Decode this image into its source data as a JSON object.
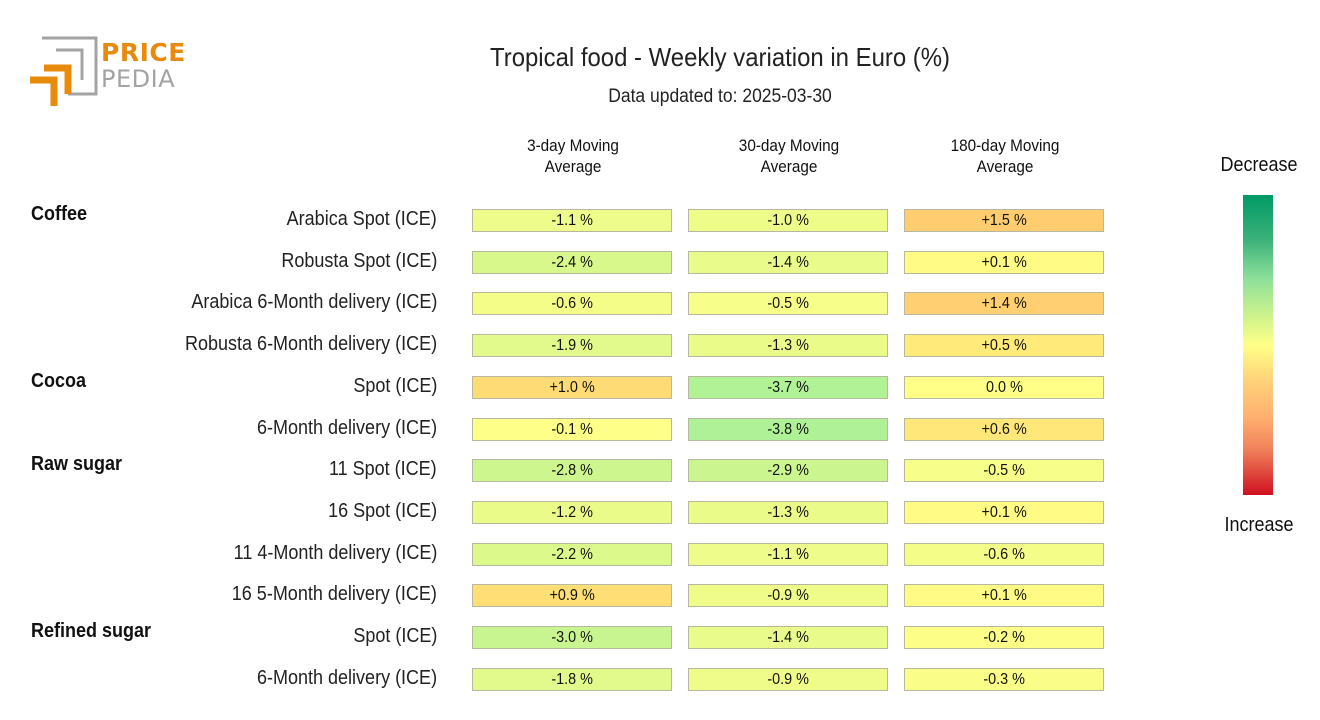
{
  "logo": {
    "line1": "PRICE",
    "line2": "PEDIA"
  },
  "header": {
    "title": "Tropical food - Weekly variation in Euro (%)",
    "subtitle": "Data updated to: 2025-03-30"
  },
  "legend": {
    "top": "Decrease",
    "bottom": "Increase"
  },
  "chart_data": {
    "type": "heatmap",
    "title": "Tropical food - Weekly variation in Euro (%)",
    "subtitle": "Data updated to: 2025-03-30",
    "columns": [
      "3-day Moving\nAverage",
      "30-day Moving\nAverage",
      "180-day Moving\nAverage"
    ],
    "column_lines": [
      [
        "3-day Moving",
        "Average"
      ],
      [
        "30-day Moving",
        "Average"
      ],
      [
        "180-day Moving",
        "Average"
      ]
    ],
    "groups": [
      {
        "name": "Coffee",
        "rows": [
          {
            "label": "Arabica Spot (ICE)",
            "values": [
              -1.1,
              -1.0,
              1.5
            ],
            "text": [
              "-1.1 %",
              "-1.0 %",
              "+1.5 %"
            ]
          },
          {
            "label": "Robusta Spot (ICE)",
            "values": [
              -2.4,
              -1.4,
              0.1
            ],
            "text": [
              "-2.4 %",
              "-1.4 %",
              "+0.1 %"
            ]
          },
          {
            "label": "Arabica 6-Month delivery (ICE)",
            "values": [
              -0.6,
              -0.5,
              1.4
            ],
            "text": [
              "-0.6 %",
              "-0.5 %",
              "+1.4 %"
            ]
          },
          {
            "label": "Robusta 6-Month delivery (ICE)",
            "values": [
              -1.9,
              -1.3,
              0.5
            ],
            "text": [
              "-1.9 %",
              "-1.3 %",
              "+0.5 %"
            ]
          }
        ]
      },
      {
        "name": "Cocoa",
        "rows": [
          {
            "label": "Spot (ICE)",
            "values": [
              1.0,
              -3.7,
              0.0
            ],
            "text": [
              "+1.0 %",
              "-3.7 %",
              "0.0 %"
            ]
          },
          {
            "label": "6-Month delivery (ICE)",
            "values": [
              -0.1,
              -3.8,
              0.6
            ],
            "text": [
              "-0.1 %",
              "-3.8 %",
              "+0.6 %"
            ]
          }
        ]
      },
      {
        "name": "Raw sugar",
        "rows": [
          {
            "label": "11 Spot (ICE)",
            "values": [
              -2.8,
              -2.9,
              -0.5
            ],
            "text": [
              "-2.8 %",
              "-2.9 %",
              "-0.5 %"
            ]
          },
          {
            "label": "16 Spot (ICE)",
            "values": [
              -1.2,
              -1.3,
              0.1
            ],
            "text": [
              "-1.2 %",
              "-1.3 %",
              "+0.1 %"
            ]
          },
          {
            "label": "11 4-Month delivery (ICE)",
            "values": [
              -2.2,
              -1.1,
              -0.6
            ],
            "text": [
              "-2.2 %",
              "-1.1 %",
              "-0.6 %"
            ]
          },
          {
            "label": "16 5-Month delivery (ICE)",
            "values": [
              0.9,
              -0.9,
              0.1
            ],
            "text": [
              "+0.9 %",
              "-0.9 %",
              "+0.1 %"
            ]
          }
        ]
      },
      {
        "name": "Refined sugar",
        "rows": [
          {
            "label": "Spot (ICE)",
            "values": [
              -3.0,
              -1.4,
              -0.2
            ],
            "text": [
              "-3.0 %",
              "-1.4 %",
              "-0.2 %"
            ]
          },
          {
            "label": "6-Month delivery (ICE)",
            "values": [
              -1.8,
              -0.9,
              -0.3
            ],
            "text": [
              "-1.8 %",
              "-0.9 %",
              "-0.3 %"
            ]
          }
        ]
      }
    ],
    "color_scale": {
      "negative": "#009966",
      "zero": "#ffff88",
      "positive": "#d01020",
      "low_label": "Decrease",
      "high_label": "Increase"
    }
  }
}
